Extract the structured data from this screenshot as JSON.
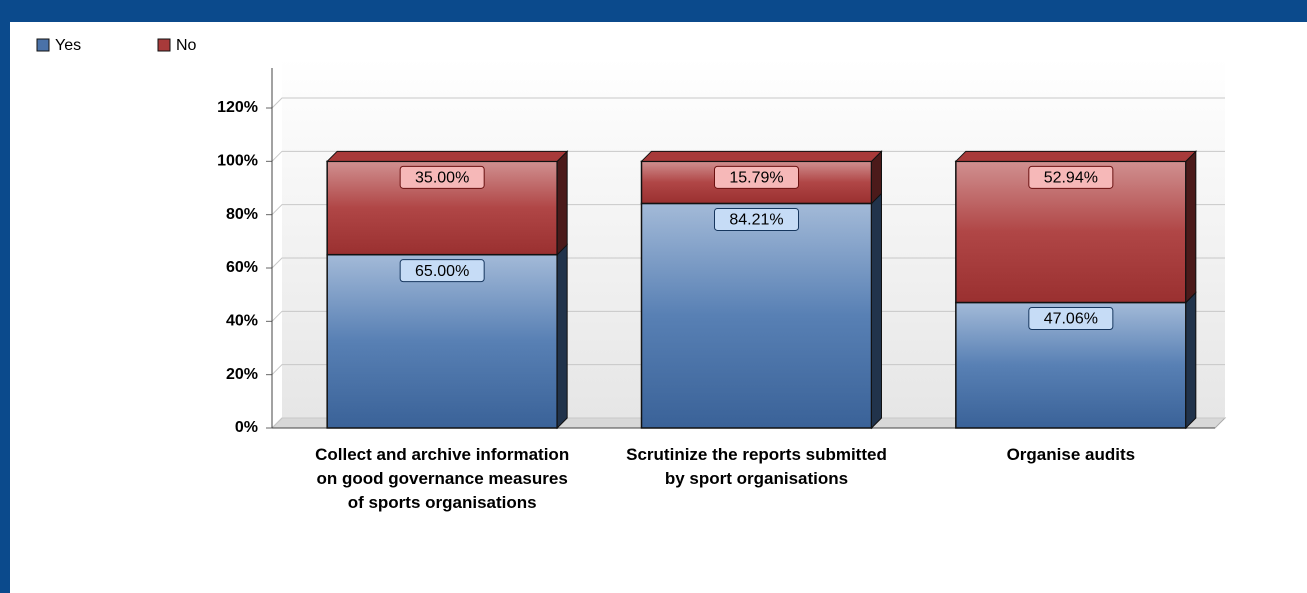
{
  "chart_data": {
    "type": "stacked_bar",
    "categories": [
      "Collect and archive information on good governance measures of sports organisations",
      "Scrutinize the reports submitted by sport organisations",
      "Organise audits"
    ],
    "series": [
      {
        "name": "Yes",
        "color": "#4a72a8",
        "values": [
          65,
          84.21,
          47.06
        ],
        "value_labels": [
          "65.00%",
          "84.21%",
          "47.06%"
        ]
      },
      {
        "name": "No",
        "color": "#a83a3a",
        "values": [
          35,
          15.79,
          52.94
        ],
        "value_labels": [
          "35.00%",
          "15.79%",
          "52.94%"
        ]
      }
    ],
    "ylim": [
      0,
      135
    ],
    "yticks": [
      {
        "value": 0,
        "label": "0%"
      },
      {
        "value": 20,
        "label": "20%"
      },
      {
        "value": 40,
        "label": "40%"
      },
      {
        "value": 60,
        "label": "60%"
      },
      {
        "value": 80,
        "label": "80%"
      },
      {
        "value": 100,
        "label": "100%"
      },
      {
        "value": 120,
        "label": "120%"
      }
    ],
    "grid": true,
    "legend": "top-left"
  }
}
